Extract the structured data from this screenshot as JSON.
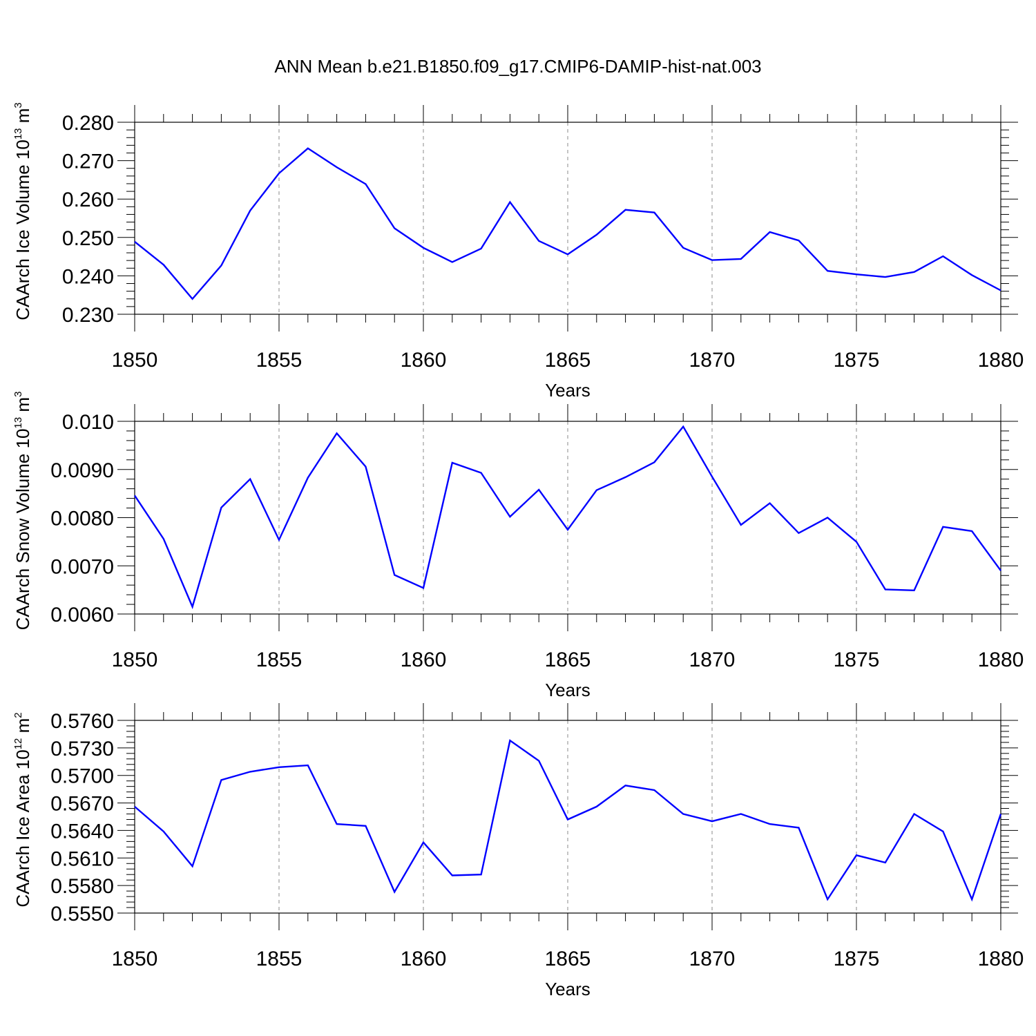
{
  "title": "ANN Mean b.e21.B1850.f09_g17.CMIP6-DAMIP-hist-nat.003",
  "colors": {
    "line": "#0000ff",
    "axis": "#000000",
    "grid": "#888888"
  },
  "chart_data": [
    {
      "type": "line",
      "title": "",
      "ylabel": "CAArch Ice Volume 10",
      "ylabel_exp": "13",
      "ylabel_unit": " m",
      "ylabel_unit_exp": "3",
      "xlabel": "Years",
      "xlim": [
        1850,
        1880
      ],
      "ylim": [
        0.23,
        0.28
      ],
      "x_ticks": [
        1850,
        1855,
        1860,
        1865,
        1870,
        1875,
        1880
      ],
      "x_tick_labels": [
        "1850",
        "1855",
        "1860",
        "1865",
        "1870",
        "1875",
        "1880"
      ],
      "y_ticks": [
        0.23,
        0.24,
        0.25,
        0.26,
        0.27,
        0.28
      ],
      "y_tick_labels": [
        "0.230",
        "0.240",
        "0.250",
        "0.260",
        "0.270",
        "0.280"
      ],
      "grid_x": true,
      "x": [
        1850,
        1851,
        1852,
        1853,
        1854,
        1855,
        1856,
        1857,
        1858,
        1859,
        1860,
        1861,
        1862,
        1863,
        1864,
        1865,
        1866,
        1867,
        1868,
        1869,
        1870,
        1871,
        1872,
        1873,
        1874,
        1875,
        1876,
        1877,
        1878,
        1879,
        1880
      ],
      "series": [
        {
          "name": "Ice Volume",
          "values": [
            0.2489,
            0.2429,
            0.234,
            0.2427,
            0.257,
            0.2667,
            0.2732,
            0.2683,
            0.2639,
            0.2524,
            0.2473,
            0.2436,
            0.2471,
            0.2592,
            0.2491,
            0.2456,
            0.2507,
            0.2572,
            0.2565,
            0.2473,
            0.2441,
            0.2444,
            0.2514,
            0.2492,
            0.2413,
            0.2404,
            0.2397,
            0.241,
            0.2451,
            0.2402,
            0.2362
          ]
        }
      ]
    },
    {
      "type": "line",
      "title": "",
      "ylabel": "CAArch Snow Volume 10",
      "ylabel_exp": "13",
      "ylabel_unit": " m",
      "ylabel_unit_exp": "3",
      "xlabel": "Years",
      "xlim": [
        1850,
        1880
      ],
      "ylim": [
        0.006,
        0.01
      ],
      "x_ticks": [
        1850,
        1855,
        1860,
        1865,
        1870,
        1875,
        1880
      ],
      "x_tick_labels": [
        "1850",
        "1855",
        "1860",
        "1865",
        "1870",
        "1875",
        "1880"
      ],
      "y_ticks": [
        0.006,
        0.007,
        0.008,
        0.009,
        0.01
      ],
      "y_tick_labels": [
        "0.0060",
        "0.0070",
        "0.0080",
        "0.0090",
        "0.010"
      ],
      "grid_x": true,
      "x": [
        1850,
        1851,
        1852,
        1853,
        1854,
        1855,
        1856,
        1857,
        1858,
        1859,
        1860,
        1861,
        1862,
        1863,
        1864,
        1865,
        1866,
        1867,
        1868,
        1869,
        1870,
        1871,
        1872,
        1873,
        1874,
        1875,
        1876,
        1877,
        1878,
        1879,
        1880
      ],
      "series": [
        {
          "name": "Snow Volume",
          "values": [
            0.00846,
            0.00756,
            0.00615,
            0.00821,
            0.0088,
            0.00754,
            0.00883,
            0.00975,
            0.00906,
            0.00681,
            0.00654,
            0.00914,
            0.00893,
            0.00802,
            0.00858,
            0.00775,
            0.00857,
            0.00884,
            0.00915,
            0.00989,
            0.00885,
            0.00785,
            0.0083,
            0.00768,
            0.008,
            0.0075,
            0.00651,
            0.00649,
            0.00781,
            0.00772,
            0.0069
          ]
        }
      ]
    },
    {
      "type": "line",
      "title": "",
      "ylabel": "CAArch Ice Area 10",
      "ylabel_exp": "12",
      "ylabel_unit": " m",
      "ylabel_unit_exp": "2",
      "xlabel": "Years",
      "xlim": [
        1850,
        1880
      ],
      "ylim": [
        0.555,
        0.576
      ],
      "x_ticks": [
        1850,
        1855,
        1860,
        1865,
        1870,
        1875,
        1880
      ],
      "x_tick_labels": [
        "1850",
        "1855",
        "1860",
        "1865",
        "1870",
        "1875",
        "1880"
      ],
      "y_ticks": [
        0.555,
        0.558,
        0.561,
        0.564,
        0.567,
        0.57,
        0.573,
        0.576
      ],
      "y_tick_labels": [
        "0.5550",
        "0.5580",
        "0.5610",
        "0.5640",
        "0.5670",
        "0.5700",
        "0.5730",
        "0.5760"
      ],
      "grid_x": true,
      "x": [
        1850,
        1851,
        1852,
        1853,
        1854,
        1855,
        1856,
        1857,
        1858,
        1859,
        1860,
        1861,
        1862,
        1863,
        1864,
        1865,
        1866,
        1867,
        1868,
        1869,
        1870,
        1871,
        1872,
        1873,
        1874,
        1875,
        1876,
        1877,
        1878,
        1879,
        1880
      ],
      "series": [
        {
          "name": "Ice Area",
          "values": [
            0.5666,
            0.5639,
            0.5601,
            0.5695,
            0.5704,
            0.5709,
            0.5711,
            0.5647,
            0.5645,
            0.5573,
            0.5627,
            0.5591,
            0.5592,
            0.5738,
            0.5716,
            0.5652,
            0.5666,
            0.5689,
            0.5684,
            0.5658,
            0.565,
            0.5658,
            0.5647,
            0.5643,
            0.5565,
            0.5613,
            0.5605,
            0.5658,
            0.5639,
            0.5565,
            0.5658
          ]
        }
      ]
    }
  ]
}
